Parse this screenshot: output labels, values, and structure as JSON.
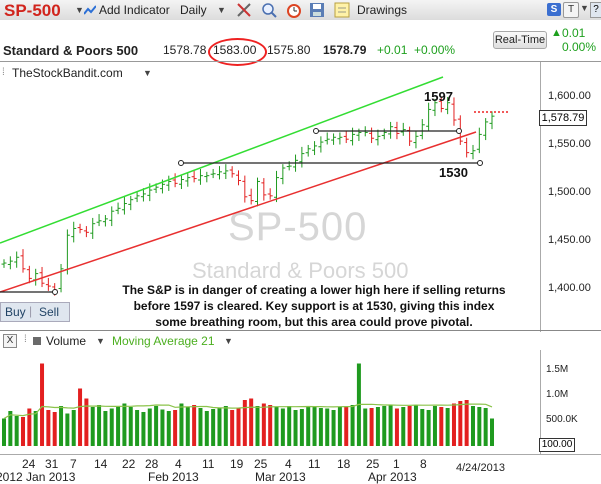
{
  "toolbar": {
    "symbol": "SP-500",
    "add_indicator": "Add Indicator",
    "interval": "Daily",
    "drawings": "Drawings"
  },
  "quote": {
    "name": "Standard & Poors 500",
    "open": "1578.78",
    "high": "1583.00",
    "low": "1575.80",
    "last": "1578.79",
    "change": "+0.01",
    "pct": "+0.00%",
    "realtime_label": "Real-Time",
    "rt_change": "0.01",
    "rt_pct": "0.00%"
  },
  "site": "TheStockBandit.com",
  "watermark": {
    "symbol": "SP-500",
    "name": "Standard & Poors 500"
  },
  "annotation": "The S&P is in danger of creating a lower high here if selling returns before 1597 is cleared. Key support is at 1530, giving this index some breathing room, but this area could prove pivotal.",
  "levels": {
    "resistance": "1597",
    "support": "1530"
  },
  "price_axis": [
    "1,600.00",
    "1,550.00",
    "1,500.00",
    "1,450.00",
    "1,400.00"
  ],
  "last_price_tag": "1,578.79",
  "buy_sell": {
    "buy": "Buy",
    "sell": "Sell"
  },
  "volume_panel": {
    "close": "X",
    "label": "Volume",
    "ma_label": "Moving Average 21",
    "axis": [
      "1.5M",
      "1.0M",
      "500.0K"
    ],
    "box": "100.00"
  },
  "date_axis": {
    "days": [
      "24",
      "31",
      "7",
      "14",
      "22",
      "28",
      "4",
      "11",
      "19",
      "25",
      "4",
      "11",
      "18",
      "25",
      "1",
      "8",
      "4/24/2013"
    ],
    "months": [
      "2012 Jan 2013",
      "Feb 2013",
      "Mar 2013",
      "Apr 2013"
    ]
  },
  "colors": {
    "up": "#1f9a1f",
    "down": "#e32020",
    "channel_top": "#33dd33",
    "channel_bottom": "#e83030",
    "symbol": "#d1241c"
  },
  "chart_data": {
    "type": "candlestick",
    "y_range": [
      1375,
      1625
    ],
    "closes": [
      1426,
      1428,
      1432,
      1420,
      1410,
      1415,
      1405,
      1402,
      1398,
      1420,
      1455,
      1462,
      1461,
      1458,
      1467,
      1470,
      1472,
      1480,
      1483,
      1488,
      1492,
      1496,
      1498,
      1502,
      1505,
      1508,
      1511,
      1509,
      1513,
      1515,
      1514,
      1517,
      1517,
      1519,
      1521,
      1522,
      1519,
      1512,
      1495,
      1491,
      1511,
      1497,
      1496,
      1515,
      1525,
      1527,
      1533,
      1540,
      1545,
      1548,
      1552,
      1555,
      1557,
      1557,
      1555,
      1560,
      1562,
      1562,
      1556,
      1558,
      1562,
      1568,
      1561,
      1565,
      1553,
      1558,
      1570,
      1586,
      1593,
      1587,
      1593,
      1575,
      1553,
      1541,
      1543,
      1560,
      1573,
      1579
    ],
    "volumes": [
      0.55,
      0.7,
      0.6,
      0.58,
      0.75,
      0.7,
      1.65,
      0.72,
      0.68,
      0.8,
      0.65,
      0.72,
      1.15,
      0.95,
      0.78,
      0.82,
      0.7,
      0.75,
      0.8,
      0.85,
      0.78,
      0.72,
      0.68,
      0.75,
      0.8,
      0.73,
      0.7,
      0.72,
      0.85,
      0.78,
      0.82,
      0.76,
      0.7,
      0.74,
      0.77,
      0.8,
      0.72,
      0.75,
      0.92,
      0.95,
      0.8,
      0.85,
      0.82,
      0.78,
      0.75,
      0.8,
      0.72,
      0.74,
      0.78,
      0.8,
      0.76,
      0.75,
      0.72,
      0.78,
      0.8,
      0.82,
      1.65,
      0.75,
      0.76,
      0.78,
      0.8,
      0.82,
      0.75,
      0.78,
      0.8,
      0.82,
      0.74,
      0.72,
      0.8,
      0.78,
      0.76,
      0.85,
      0.9,
      0.92,
      0.8,
      0.78,
      0.76,
      0.55
    ]
  }
}
